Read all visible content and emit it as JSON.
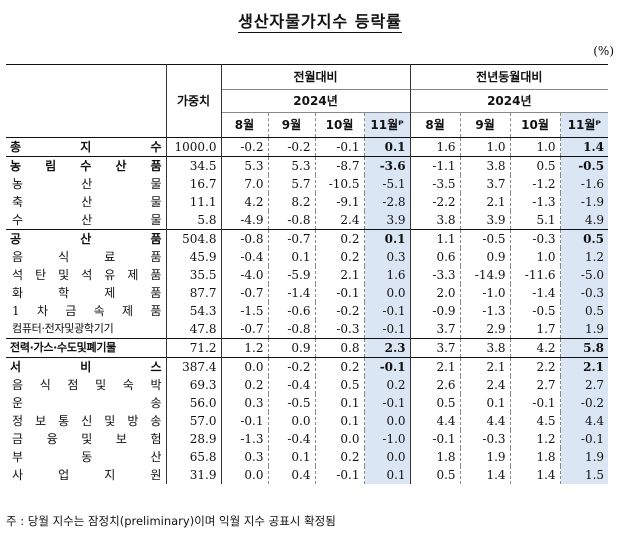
{
  "title": "생산자물가지수 등락률",
  "unit": "(%)",
  "header": {
    "weight": "가중치",
    "group_mom": "전월대비",
    "group_yoy": "전년동월대비",
    "year": "2024년",
    "months": [
      "8월",
      "9월",
      "10월",
      "11월ᴾ"
    ]
  },
  "rows": [
    {
      "label": "총 지 수",
      "type": "main",
      "w": "1000.0",
      "v": [
        "-0.2",
        "-0.2",
        "-0.1",
        "0.1",
        "1.6",
        "1.0",
        "1.0",
        "1.4"
      ]
    },
    {
      "label": "농 림 수 산 품",
      "type": "main",
      "w": "34.5",
      "v": [
        "5.3",
        "5.3",
        "-8.7",
        "-3.6",
        "-1.1",
        "3.8",
        "0.5",
        "-0.5"
      ]
    },
    {
      "label": "농 산 물",
      "type": "sub",
      "w": "16.7",
      "v": [
        "7.0",
        "5.7",
        "-10.5",
        "-5.1",
        "-3.5",
        "3.7",
        "-1.2",
        "-1.6"
      ]
    },
    {
      "label": "축 산 물",
      "type": "sub",
      "w": "11.1",
      "v": [
        "4.2",
        "8.2",
        "-9.1",
        "-2.8",
        "-2.2",
        "2.1",
        "-1.3",
        "-1.9"
      ]
    },
    {
      "label": "수 산 물",
      "type": "sub",
      "w": "5.8",
      "v": [
        "-4.9",
        "-0.8",
        "2.4",
        "3.9",
        "3.8",
        "3.9",
        "5.1",
        "4.9"
      ]
    },
    {
      "label": "공 산 품",
      "type": "main",
      "w": "504.8",
      "v": [
        "-0.8",
        "-0.7",
        "0.2",
        "0.1",
        "1.1",
        "-0.5",
        "-0.3",
        "0.5"
      ]
    },
    {
      "label": "음 식 료 품",
      "type": "sub",
      "w": "45.9",
      "v": [
        "-0.4",
        "0.1",
        "0.2",
        "0.3",
        "0.6",
        "0.9",
        "1.0",
        "1.2"
      ]
    },
    {
      "label": "석 탄 및 석 유 제 품",
      "type": "sub",
      "w": "35.5",
      "v": [
        "-4.0",
        "-5.9",
        "2.1",
        "1.6",
        "-3.3",
        "-14.9",
        "-11.6",
        "-5.0"
      ]
    },
    {
      "label": "화 학 제 품",
      "type": "sub",
      "w": "87.7",
      "v": [
        "-0.7",
        "-1.4",
        "-0.1",
        "0.0",
        "2.0",
        "-1.0",
        "-1.4",
        "-0.3"
      ]
    },
    {
      "label": "1 차 금 속 제 품",
      "type": "sub",
      "w": "54.3",
      "v": [
        "-1.5",
        "-0.6",
        "-0.2",
        "-0.1",
        "-0.9",
        "-1.3",
        "-0.5",
        "0.5"
      ]
    },
    {
      "label": "컴퓨터·전자및광학기기",
      "type": "sub",
      "tight": true,
      "w": "47.8",
      "v": [
        "-0.7",
        "-0.8",
        "-0.3",
        "-0.1",
        "3.7",
        "2.9",
        "1.7",
        "1.9"
      ]
    },
    {
      "label": "전력·가스·수도및폐기물",
      "type": "main",
      "tight": true,
      "w": "71.2",
      "v": [
        "1.2",
        "0.9",
        "0.8",
        "2.3",
        "3.7",
        "3.8",
        "4.2",
        "5.8"
      ]
    },
    {
      "label": "서 비 스",
      "type": "main",
      "w": "387.4",
      "v": [
        "0.0",
        "-0.2",
        "0.2",
        "-0.1",
        "2.1",
        "2.1",
        "2.2",
        "2.1"
      ]
    },
    {
      "label": "음 식 점 및 숙 박",
      "type": "sub",
      "w": "69.3",
      "v": [
        "0.2",
        "-0.4",
        "0.5",
        "0.2",
        "2.6",
        "2.4",
        "2.7",
        "2.7"
      ]
    },
    {
      "label": "운 송",
      "type": "sub",
      "w": "56.0",
      "v": [
        "0.3",
        "-0.5",
        "0.1",
        "-0.1",
        "0.5",
        "0.1",
        "-0.1",
        "-0.2"
      ]
    },
    {
      "label": "정 보 통 신 및 방 송",
      "type": "sub",
      "w": "57.0",
      "v": [
        "-0.1",
        "0.0",
        "0.1",
        "0.0",
        "4.4",
        "4.4",
        "4.5",
        "4.4"
      ]
    },
    {
      "label": "금 융 및 보 험",
      "type": "sub",
      "w": "28.9",
      "v": [
        "-1.3",
        "-0.4",
        "0.0",
        "-1.0",
        "-0.1",
        "-0.3",
        "1.2",
        "-0.1"
      ]
    },
    {
      "label": "부 동 산",
      "type": "sub",
      "w": "65.8",
      "v": [
        "0.3",
        "0.1",
        "0.2",
        "0.0",
        "1.8",
        "1.9",
        "1.8",
        "1.9"
      ]
    },
    {
      "label": "사 업 지 원",
      "type": "sub",
      "w": "31.9",
      "v": [
        "0.0",
        "0.4",
        "-0.1",
        "0.1",
        "0.5",
        "1.4",
        "1.4",
        "1.5"
      ]
    }
  ],
  "footnote": "주 : 당월 지수는 잠정치(preliminary)이며 익월 지수 공표시 확정됨"
}
